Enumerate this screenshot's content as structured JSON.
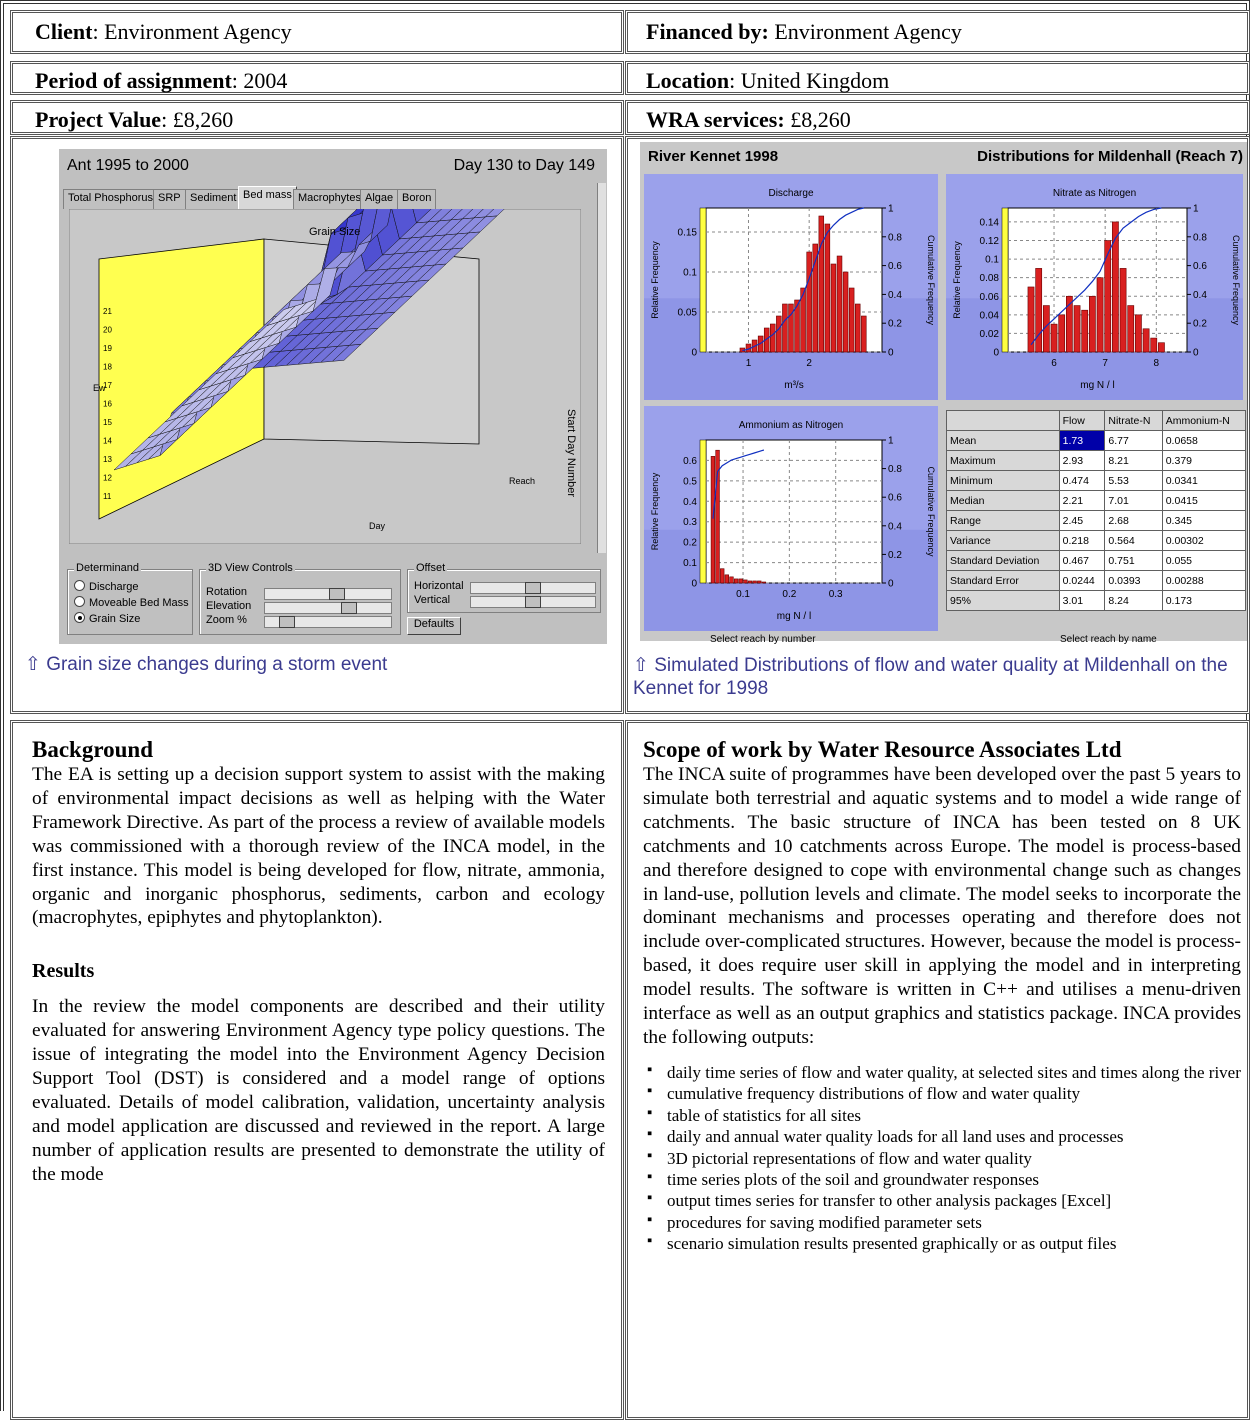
{
  "header": {
    "client_label": "Client",
    "client_value": "Environment Agency",
    "financed_label": "Financed by:",
    "financed_value": "Environment Agency",
    "period_label": "Period of assignment",
    "period_value": "2004",
    "location_label": "Location",
    "location_value": "United Kingdom",
    "value_label": "Project Value",
    "value_value": "£8,260",
    "services_label": "WRA services:",
    "services_value": "£8,260"
  },
  "left_figure": {
    "title": "Ant 1995 to 2000",
    "day_range": "Day 130 to Day 149",
    "tabs": [
      "Total Phosphorus",
      "SRP",
      "Sediment",
      "Bed mass",
      "Macrophytes",
      "Algae",
      "Boron"
    ],
    "active_tab": 3,
    "plot_title": "Grain Size",
    "right_axis": "Start Day Number",
    "y_ticks": [
      "21",
      "20",
      "19",
      "18",
      "17",
      "16",
      "15",
      "14",
      "13",
      "12",
      "11"
    ],
    "x_axis": "Day",
    "reach_axis": "Reach",
    "determinand_title": "Determinand",
    "determinand_options": [
      "Discharge",
      "Moveable Bed Mass",
      "Grain Size"
    ],
    "determinand_selected": 2,
    "view_title": "3D View Controls",
    "view_controls": [
      "Rotation",
      "Elevation",
      "Zoom %"
    ],
    "offset_title": "Offset",
    "offset_controls": [
      "Horizontal",
      "Vertical"
    ],
    "defaults_button": "Defaults",
    "caption": "⇧ Grain size changes during a storm event",
    "colors": {
      "surface_top": "#3a3ad0",
      "surface_low": "#e8e8f4",
      "wall": "#ffff50"
    }
  },
  "right_figure": {
    "title_left": "River Kennet 1998",
    "title_right": "Distributions for Mildenhall (Reach 7)",
    "caption": "⇧ Simulated Distributions of flow and water quality at Mildenhall on the Kennet for 1998",
    "footer_left": "Select reach by number",
    "footer_right": "Select reach by name",
    "stats": {
      "headers": [
        "",
        "Flow",
        "Nitrate-N",
        "Ammonium-N"
      ],
      "rows": [
        [
          "Mean",
          "1.73",
          "6.77",
          "0.0658"
        ],
        [
          "Maximum",
          "2.93",
          "8.21",
          "0.379"
        ],
        [
          "Minimum",
          "0.474",
          "5.53",
          "0.0341"
        ],
        [
          "Median",
          "2.21",
          "7.01",
          "0.0415"
        ],
        [
          "Range",
          "2.45",
          "2.68",
          "0.345"
        ],
        [
          "Variance",
          "0.218",
          "0.564",
          "0.00302"
        ],
        [
          "Standard Deviation",
          "0.467",
          "0.751",
          "0.055"
        ],
        [
          "Standard Error",
          "0.0244",
          "0.0393",
          "0.00288"
        ],
        [
          "95%",
          "3.01",
          "8.24",
          "0.173"
        ]
      ]
    },
    "chart_data": [
      {
        "type": "bar",
        "title": "Discharge",
        "xlabel": "m³/s",
        "ylabel": "Relative Frequency",
        "y2label": "Cumulative Frequency",
        "x_ticks": [
          "1",
          "2"
        ],
        "y_ticks": [
          "0",
          "0.05",
          "0.1",
          "0.15"
        ],
        "y2_ticks": [
          "0",
          "0.2",
          "0.4",
          "0.6",
          "0.8",
          "1"
        ],
        "xlim": [
          0.3,
          3.2
        ],
        "ylim": [
          0,
          0.18
        ],
        "x": [
          0.9,
          1.0,
          1.1,
          1.2,
          1.3,
          1.4,
          1.5,
          1.6,
          1.7,
          1.8,
          1.9,
          2.0,
          2.1,
          2.2,
          2.3,
          2.4,
          2.5,
          2.6,
          2.7,
          2.8,
          2.9
        ],
        "values": [
          0.005,
          0.01,
          0.015,
          0.02,
          0.03,
          0.035,
          0.045,
          0.06,
          0.06,
          0.065,
          0.08,
          0.125,
          0.135,
          0.17,
          0.16,
          0.11,
          0.12,
          0.1,
          0.08,
          0.06,
          0.045
        ],
        "cumulative": [
          0.01,
          0.02,
          0.04,
          0.06,
          0.09,
          0.12,
          0.16,
          0.22,
          0.26,
          0.32,
          0.4,
          0.51,
          0.63,
          0.75,
          0.83,
          0.88,
          0.92,
          0.95,
          0.97,
          0.99,
          1.0
        ]
      },
      {
        "type": "bar",
        "title": "Nitrate as Nitrogen",
        "xlabel": "mg N / l",
        "ylabel": "Relative Frequency",
        "y2label": "Cumulative Frequency",
        "x_ticks": [
          "6",
          "7",
          "8"
        ],
        "y_ticks": [
          "0",
          "0.02",
          "0.04",
          "0.06",
          "0.08",
          "0.1",
          "0.12",
          "0.14"
        ],
        "y2_ticks": [
          "0",
          "0.2",
          "0.4",
          "0.6",
          "0.8",
          "1"
        ],
        "xlim": [
          5.1,
          8.6
        ],
        "ylim": [
          0,
          0.155
        ],
        "x": [
          5.55,
          5.7,
          5.85,
          6.0,
          6.15,
          6.3,
          6.45,
          6.6,
          6.75,
          6.9,
          7.05,
          7.2,
          7.35,
          7.5,
          7.65,
          7.8,
          7.95,
          8.1
        ],
        "values": [
          0.07,
          0.09,
          0.05,
          0.03,
          0.04,
          0.06,
          0.05,
          0.045,
          0.06,
          0.08,
          0.12,
          0.14,
          0.09,
          0.05,
          0.04,
          0.025,
          0.015,
          0.01
        ],
        "cumulative": [
          0.05,
          0.12,
          0.18,
          0.23,
          0.28,
          0.33,
          0.38,
          0.43,
          0.49,
          0.56,
          0.68,
          0.79,
          0.86,
          0.9,
          0.94,
          0.97,
          0.99,
          1.0
        ]
      },
      {
        "type": "bar",
        "title": "Ammonium as Nitrogen",
        "xlabel": "mg N / l",
        "ylabel": "Relative Frequency",
        "y2label": "Cumulative Frequency",
        "x_ticks": [
          "0.1",
          "0.2",
          "0.3"
        ],
        "y_ticks": [
          "0",
          "0.1",
          "0.2",
          "0.3",
          "0.4",
          "0.5",
          "0.6"
        ],
        "y2_ticks": [
          "0",
          "0.2",
          "0.4",
          "0.6",
          "0.8",
          "1"
        ],
        "xlim": [
          0.02,
          0.4
        ],
        "ylim": [
          0,
          0.7
        ],
        "x": [
          0.035,
          0.045,
          0.055,
          0.065,
          0.075,
          0.085,
          0.095,
          0.105,
          0.115,
          0.125,
          0.135,
          0.145
        ],
        "values": [
          0.62,
          0.65,
          0.07,
          0.04,
          0.03,
          0.02,
          0.02,
          0.015,
          0.01,
          0.01,
          0.01,
          0.005
        ],
        "cumulative": [
          0.45,
          0.78,
          0.82,
          0.84,
          0.86,
          0.87,
          0.88,
          0.89,
          0.9,
          0.91,
          0.92,
          0.93
        ]
      }
    ]
  },
  "background": {
    "title": "Background",
    "text": "The EA is setting up a decision support system to assist with the making of environmental impact decisions as well as helping with the Water Framework Directive. As part of the process a review of available models was commissioned with a thorough review of the INCA model, in the first instance. This model is being developed for flow, nitrate, ammonia, organic and inorganic phosphorus, sediments, carbon and ecology (macrophytes, epiphytes and phytoplankton)."
  },
  "results": {
    "title": "Results",
    "text": "In the review the model components are described and their utility evaluated for answering Environment Agency type policy questions. The issue of integrating the model into the Environment Agency Decision Support Tool (DST) is considered and a model range of options evaluated. Details of model calibration, validation, uncertainty analysis and model application are discussed and reviewed in the report. A large number of application results are presented to demonstrate the utility of the mode"
  },
  "scope": {
    "title": "Scope of work by Water Resource Associates Ltd",
    "text": "The INCA suite of programmes have been developed over the past 5 years to simulate both terrestrial and aquatic systems and to model a wide range of catchments. The basic structure of INCA has been tested on 8 UK catchments and 10 catchments across Europe. The model is process-based and therefore designed to cope with environmental change such as changes in land-use, pollution levels and climate. The model seeks to incorporate the dominant mechanisms and processes operating and therefore does not include over-complicated structures. However, because the model is process-based, it does require user skill in applying the model and in interpreting model results. The software is written in C++ and utilises a menu-driven interface as well as an output graphics and statistics package. INCA provides the following outputs:",
    "outputs": [
      "daily time series of flow and water quality, at selected sites and times along the river",
      "cumulative frequency distributions of flow and water quality",
      "table of statistics for all sites",
      "daily and annual water quality loads for all land uses and processes",
      "3D pictorial representations of flow and water quality",
      "time series plots of the soil and groundwater responses",
      "output times series for transfer to other analysis packages [Excel]",
      "procedures for saving modified parameter sets",
      "scenario simulation results presented graphically or as output files"
    ]
  }
}
